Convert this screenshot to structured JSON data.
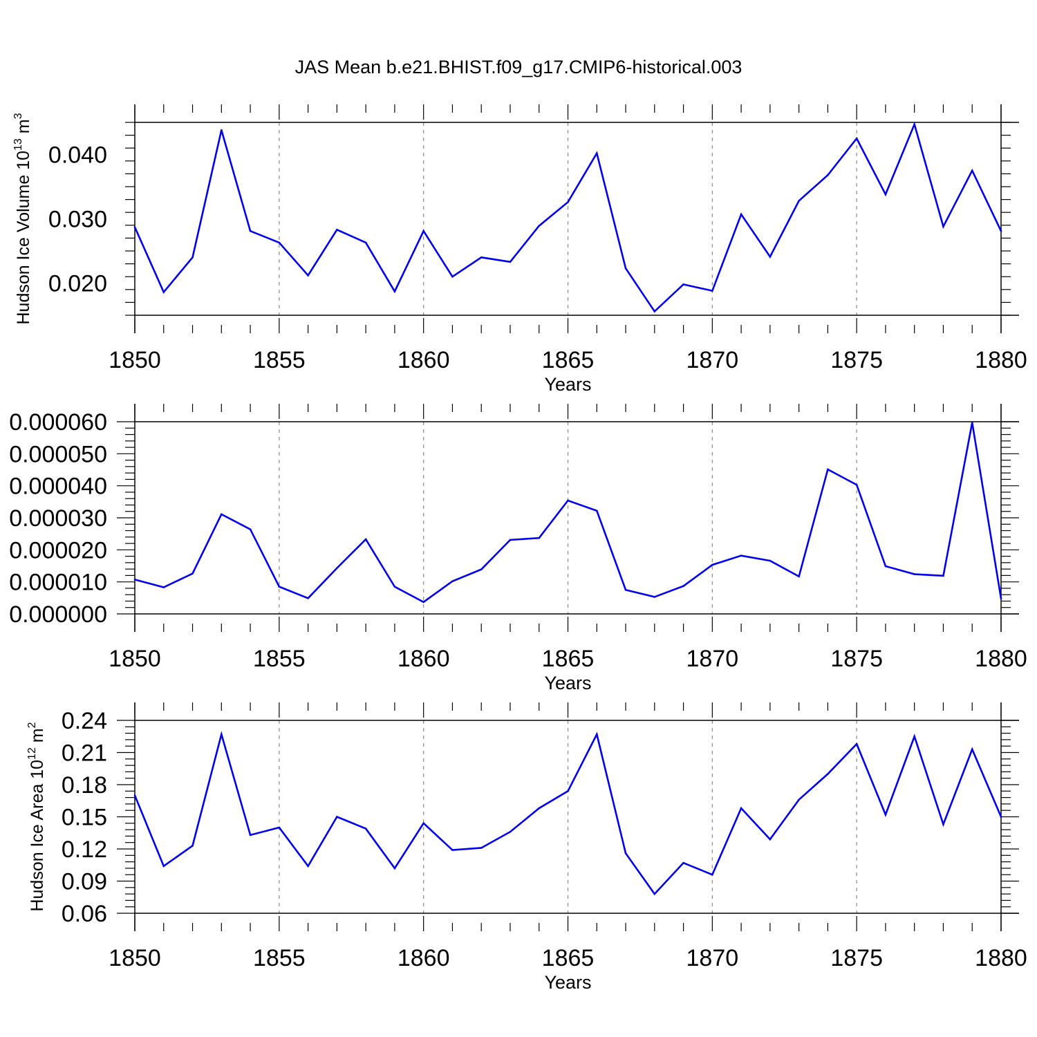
{
  "title": "JAS Mean b.e21.BHIST.f09_g17.CMIP6-historical.003",
  "colors": {
    "line": "#0000ee",
    "axis": "#000000",
    "grid": "#888888",
    "background": "#ffffff"
  },
  "chart_data": [
    {
      "type": "line",
      "ylabel": {
        "text": "Hudson Ice Volume 10",
        "sup": "13",
        "unit": " m",
        "unit_sup": "3"
      },
      "xlabel": "Years",
      "xlim": [
        1850,
        1880
      ],
      "ylim": [
        0.015,
        0.045
      ],
      "yticks": [
        0.02,
        0.03,
        0.04
      ],
      "ytick_labels": [
        "0.020",
        "0.030",
        "0.040"
      ],
      "xticks": [
        1850,
        1855,
        1860,
        1865,
        1870,
        1875,
        1880
      ],
      "xtick_labels": [
        "1850",
        "1855",
        "1860",
        "1865",
        "1870",
        "1875",
        "1880"
      ],
      "gridlines": "vertical dashed at major x ticks",
      "x": [
        1850,
        1851,
        1852,
        1853,
        1854,
        1855,
        1856,
        1857,
        1858,
        1859,
        1860,
        1861,
        1862,
        1863,
        1864,
        1865,
        1866,
        1867,
        1868,
        1869,
        1870,
        1871,
        1872,
        1873,
        1874,
        1875,
        1876,
        1877,
        1878,
        1879,
        1880
      ],
      "values": [
        0.0287,
        0.0186,
        0.024,
        0.0438,
        0.0281,
        0.0263,
        0.0212,
        0.0283,
        0.0263,
        0.0187,
        0.0281,
        0.021,
        0.024,
        0.0233,
        0.0289,
        0.0326,
        0.0402,
        0.0223,
        0.0156,
        0.0198,
        0.0188,
        0.0307,
        0.0241,
        0.0328,
        0.0368,
        0.0425,
        0.0338,
        0.0447,
        0.0288,
        0.0375,
        0.0281
      ]
    },
    {
      "type": "line",
      "ylabel": null,
      "xlabel": "Years",
      "xlim": [
        1850,
        1880
      ],
      "ylim": [
        0.0,
        6e-05
      ],
      "yticks": [
        0.0,
        1e-05,
        2e-05,
        3e-05,
        4e-05,
        5e-05,
        6e-05
      ],
      "ytick_labels": [
        "0.000000",
        "0.000010",
        "0.000020",
        "0.000030",
        "0.000040",
        "0.000050",
        "0.000060"
      ],
      "xticks": [
        1850,
        1855,
        1860,
        1865,
        1870,
        1875,
        1880
      ],
      "xtick_labels": [
        "1850",
        "1855",
        "1860",
        "1865",
        "1870",
        "1875",
        "1880"
      ],
      "gridlines": "vertical dashed at major x ticks",
      "x": [
        1850,
        1851,
        1852,
        1853,
        1854,
        1855,
        1856,
        1857,
        1858,
        1859,
        1860,
        1861,
        1862,
        1863,
        1864,
        1865,
        1866,
        1867,
        1868,
        1869,
        1870,
        1871,
        1872,
        1873,
        1874,
        1875,
        1876,
        1877,
        1878,
        1879,
        1880
      ],
      "values": [
        1.07e-05,
        8.3e-06,
        1.26e-05,
        3.11e-05,
        2.64e-05,
        8.5e-06,
        4.9e-06,
        1.43e-05,
        2.33e-05,
        8.5e-06,
        3.7e-06,
        1.02e-05,
        1.39e-05,
        2.31e-05,
        2.37e-05,
        3.54e-05,
        3.22e-05,
        7.5e-06,
        5.3e-06,
        8.7e-06,
        1.53e-05,
        1.82e-05,
        1.66e-05,
        1.17e-05,
        4.51e-05,
        4.03e-05,
        1.49e-05,
        1.24e-05,
        1.19e-05,
        5.97e-05,
        4.8e-06
      ]
    },
    {
      "type": "line",
      "ylabel": {
        "text": "Hudson Ice Area 10",
        "sup": "12",
        "unit": " m",
        "unit_sup": "2"
      },
      "xlabel": "Years",
      "xlim": [
        1850,
        1880
      ],
      "ylim": [
        0.06,
        0.24
      ],
      "yticks": [
        0.06,
        0.09,
        0.12,
        0.15,
        0.18,
        0.21,
        0.24
      ],
      "ytick_labels": [
        "0.06",
        "0.09",
        "0.12",
        "0.15",
        "0.18",
        "0.21",
        "0.24"
      ],
      "xticks": [
        1850,
        1855,
        1860,
        1865,
        1870,
        1875,
        1880
      ],
      "xtick_labels": [
        "1850",
        "1855",
        "1860",
        "1865",
        "1870",
        "1875",
        "1880"
      ],
      "gridlines": "vertical dashed at major x ticks",
      "x": [
        1850,
        1851,
        1852,
        1853,
        1854,
        1855,
        1856,
        1857,
        1858,
        1859,
        1860,
        1861,
        1862,
        1863,
        1864,
        1865,
        1866,
        1867,
        1868,
        1869,
        1870,
        1871,
        1872,
        1873,
        1874,
        1875,
        1876,
        1877,
        1878,
        1879,
        1880
      ],
      "values": [
        0.17,
        0.104,
        0.123,
        0.227,
        0.133,
        0.14,
        0.104,
        0.15,
        0.139,
        0.102,
        0.144,
        0.119,
        0.121,
        0.136,
        0.158,
        0.174,
        0.227,
        0.116,
        0.078,
        0.107,
        0.096,
        0.158,
        0.129,
        0.166,
        0.19,
        0.218,
        0.152,
        0.225,
        0.143,
        0.213,
        0.15
      ]
    }
  ]
}
